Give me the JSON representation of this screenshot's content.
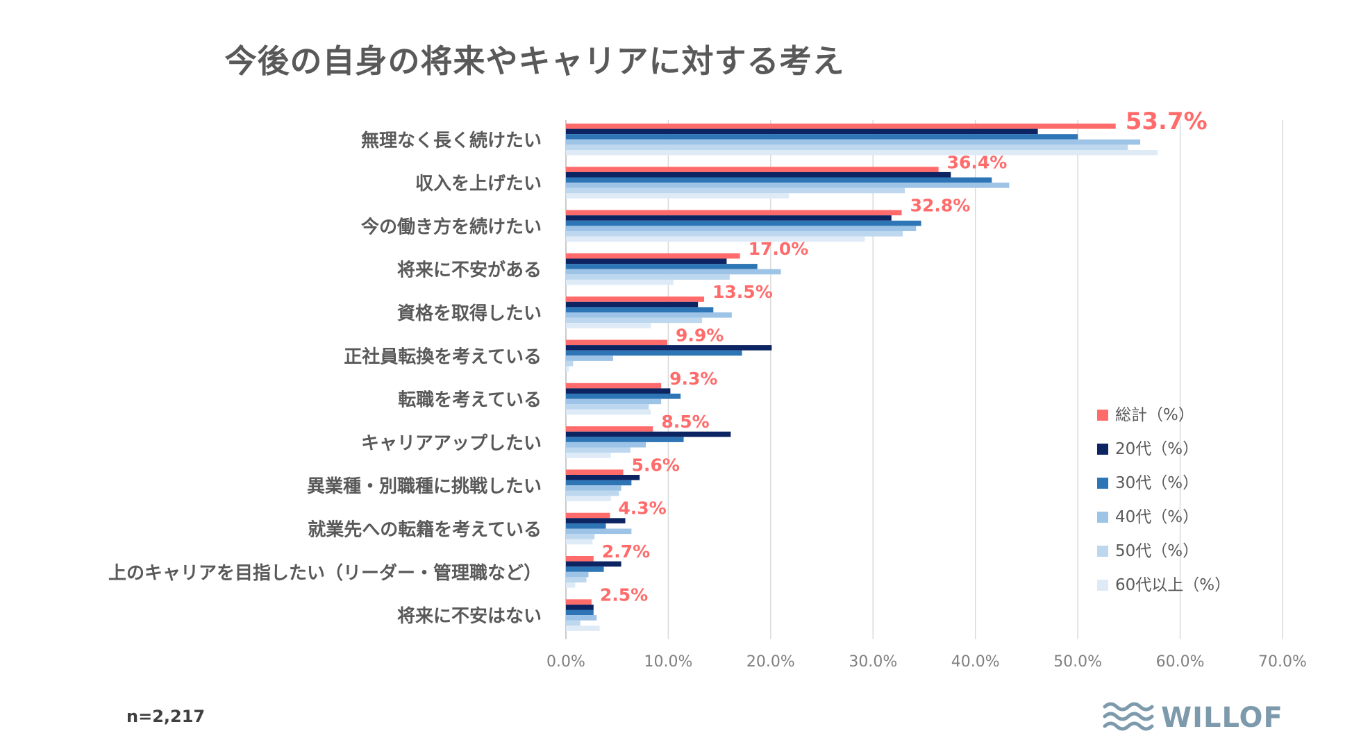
{
  "chart_data": {
    "type": "bar",
    "orientation": "horizontal",
    "title": "今後の自身の将来やキャリアに対する考え",
    "categories": [
      "無理なく長く続けたい",
      "収入を上げたい",
      "今の働き方を続けたい",
      "将来に不安がある",
      "資格を取得したい",
      "正社員転換を考えている",
      "転職を考えている",
      "キャリアアップしたい",
      "異業種・別職種に挑戦したい",
      "就業先への転籍を考えている",
      "上のキャリアを目指したい（リーダー・管理職など）",
      "将来に不安はない"
    ],
    "series": [
      {
        "name": "総計（%）",
        "color": "#ff6b6b",
        "values": [
          53.7,
          36.4,
          32.8,
          17.0,
          13.5,
          9.9,
          9.3,
          8.5,
          5.6,
          4.3,
          2.7,
          2.5
        ]
      },
      {
        "name": "20代（%）",
        "color": "#0c2461",
        "values": [
          46.1,
          37.6,
          31.8,
          15.7,
          12.9,
          20.1,
          10.2,
          16.1,
          7.2,
          5.8,
          5.4,
          2.7
        ]
      },
      {
        "name": "30代（%）",
        "color": "#2e75b6",
        "values": [
          50.0,
          41.6,
          34.7,
          18.7,
          14.4,
          17.2,
          11.2,
          11.5,
          6.4,
          3.9,
          3.7,
          2.7
        ]
      },
      {
        "name": "40代（%）",
        "color": "#9dc3e6",
        "values": [
          56.1,
          43.3,
          34.2,
          21.0,
          16.2,
          4.6,
          9.3,
          7.8,
          5.4,
          6.4,
          2.2,
          3.0
        ]
      },
      {
        "name": "50代（%）",
        "color": "#bdd7ee",
        "values": [
          54.9,
          33.1,
          32.9,
          16.0,
          13.3,
          0.7,
          8.1,
          6.3,
          5.2,
          2.8,
          2.0,
          1.4
        ]
      },
      {
        "name": "60代以上（%）",
        "color": "#deebf7",
        "values": [
          57.8,
          21.8,
          29.2,
          10.5,
          8.3,
          0.3,
          8.3,
          4.4,
          4.4,
          2.6,
          0.9,
          3.3
        ]
      }
    ],
    "data_labels": [
      "53.7%",
      "36.4%",
      "32.8%",
      "17.0%",
      "13.5%",
      "9.9%",
      "9.3%",
      "8.5%",
      "5.6%",
      "4.3%",
      "2.7%",
      "2.5%"
    ],
    "xlim": [
      0,
      70
    ],
    "xticks": [
      "0.0%",
      "10.0%",
      "20.0%",
      "30.0%",
      "40.0%",
      "50.0%",
      "60.0%",
      "70.0%"
    ],
    "legend_position": "right",
    "grid": true
  },
  "footer": {
    "sample_size": "n=2,217",
    "brand": "WILLOF"
  },
  "colors": {
    "total": "#ff6b6b",
    "gridline": "#d9d9d9",
    "brand": "#7d9aad"
  }
}
